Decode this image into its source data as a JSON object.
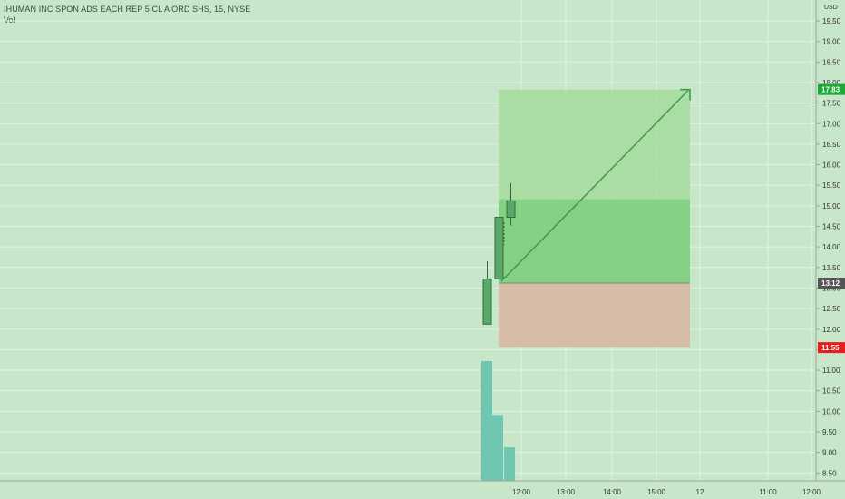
{
  "header": {
    "symbol_title": "IHUMAN INC SPON ADS EACH REP 5 CL A ORD SHS, 15, NYSE",
    "indicator": "Vol",
    "currency": "USD"
  },
  "colors": {
    "background": "#c8e6c9",
    "grid": "#e3f1e4",
    "candle": "#5aa86a",
    "candle_border": "#2f6f3d",
    "volume": "#6fc7b1",
    "profit_zone": "#82d080",
    "profit_zone_light": "#a6dca0",
    "loss_zone": "#d7b9a4",
    "target_badge": "#1fa83a",
    "stop_badge": "#e51f1f",
    "entry_badge": "#555555"
  },
  "chart_data": {
    "type": "candlestick",
    "y_axis": {
      "ticks": [
        "19.50",
        "19.00",
        "18.50",
        "18.00",
        "17.50",
        "17.00",
        "16.50",
        "16.00",
        "15.50",
        "15.00",
        "14.50",
        "14.00",
        "13.50",
        "13.00",
        "12.50",
        "12.00",
        "11.50",
        "11.00",
        "10.50",
        "10.00",
        "9.50",
        "9.00",
        "8.50"
      ],
      "range": [
        8.3,
        19.85
      ]
    },
    "x_axis": {
      "ticks": [
        "12:00",
        "13:00",
        "14:00",
        "15:00",
        "12",
        "11:00",
        "12:00"
      ]
    },
    "candles": [
      {
        "time": "11:30",
        "open": 12.12,
        "high": 13.65,
        "low": 12.12,
        "close": 13.22
      },
      {
        "time": "11:45",
        "open": 13.22,
        "high": 14.72,
        "low": 13.22,
        "close": 14.72
      },
      {
        "time": "12:00",
        "open": 14.72,
        "high": 15.55,
        "low": 14.52,
        "close": 15.12
      }
    ],
    "volume": [
      {
        "time": "11:30",
        "relative": 1.0
      },
      {
        "time": "11:45",
        "relative": 0.55
      },
      {
        "time": "12:00",
        "relative": 0.28
      }
    ],
    "position": {
      "type": "long",
      "entry": 13.12,
      "target": 17.83,
      "stop": 11.55
    },
    "price_labels": {
      "target": "17.83",
      "entry": "13.12",
      "stop": "11.55"
    }
  }
}
